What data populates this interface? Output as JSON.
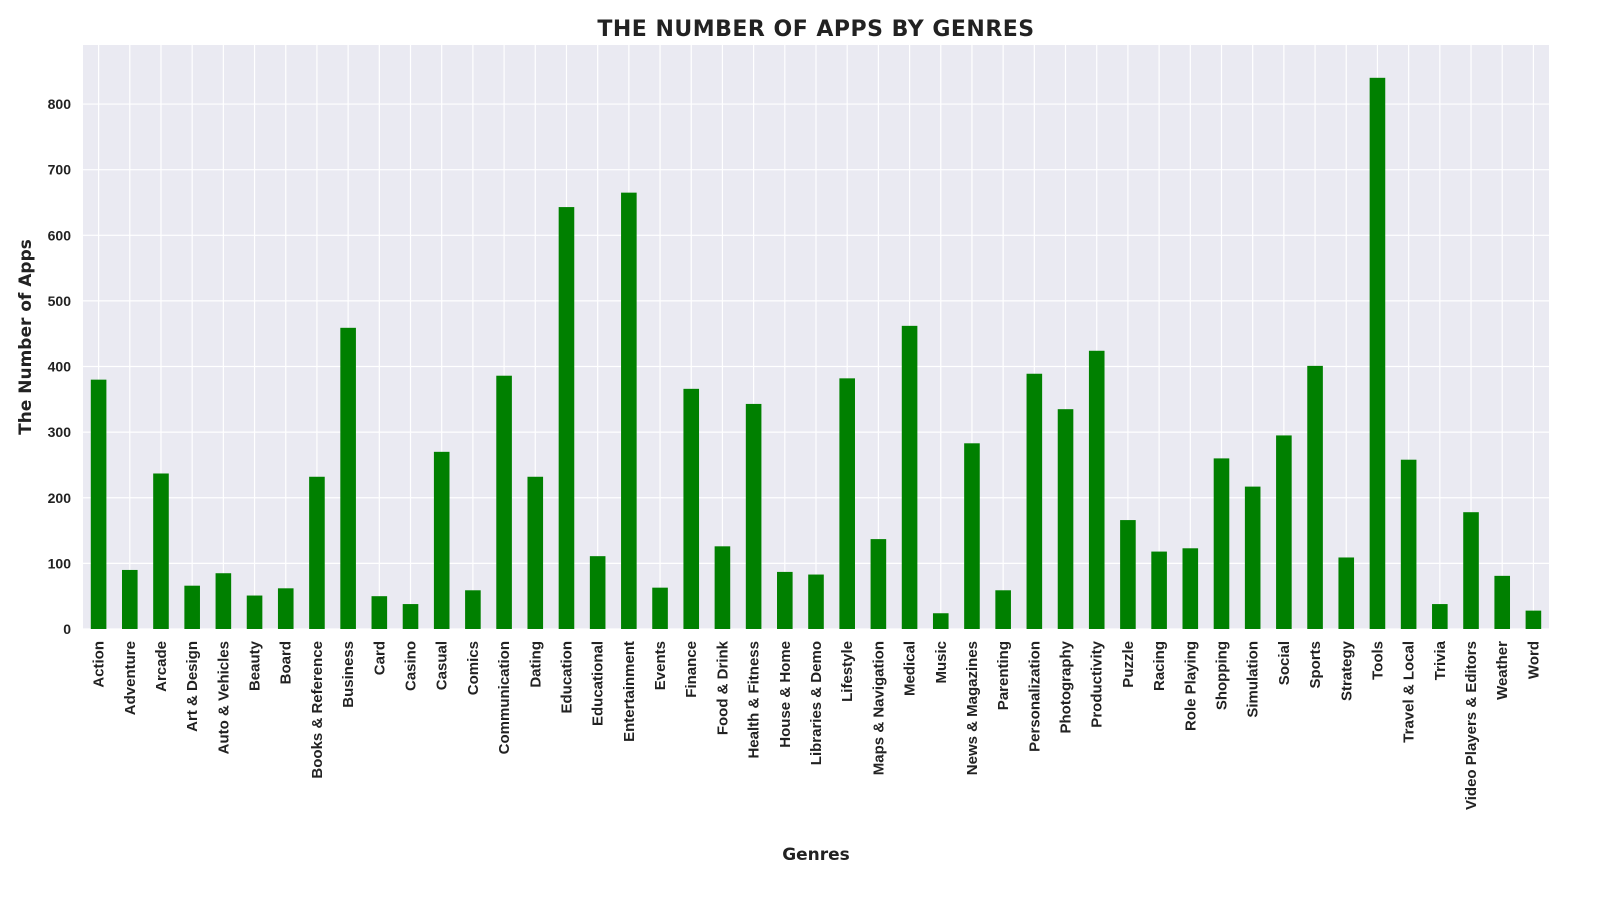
{
  "chart_data": {
    "type": "bar",
    "title": "THE NUMBER OF APPS BY GENRES",
    "xlabel": "Genres",
    "ylabel": "The Number of Apps",
    "ylim": [
      0,
      890
    ],
    "yticks": [
      0,
      100,
      200,
      300,
      400,
      500,
      600,
      700,
      800
    ],
    "grid": true,
    "bar_color": "#008000",
    "plot_background": "#eaeaf2",
    "grid_color": "#ffffff",
    "categories": [
      "Action",
      "Adventure",
      "Arcade",
      "Art & Design",
      "Auto & Vehicles",
      "Beauty",
      "Board",
      "Books & Reference",
      "Business",
      "Card",
      "Casino",
      "Casual",
      "Comics",
      "Communication",
      "Dating",
      "Education",
      "Educational",
      "Entertainment",
      "Events",
      "Finance",
      "Food & Drink",
      "Health & Fitness",
      "House & Home",
      "Libraries & Demo",
      "Lifestyle",
      "Maps & Navigation",
      "Medical",
      "Music",
      "News & Magazines",
      "Parenting",
      "Personalization",
      "Photography",
      "Productivity",
      "Puzzle",
      "Racing",
      "Role Playing",
      "Shopping",
      "Simulation",
      "Social",
      "Sports",
      "Strategy",
      "Tools",
      "Travel & Local",
      "Trivia",
      "Video Players & Editors",
      "Weather",
      "Word"
    ],
    "values": [
      380,
      90,
      237,
      66,
      85,
      51,
      62,
      232,
      459,
      50,
      38,
      270,
      59,
      386,
      232,
      643,
      111,
      665,
      63,
      366,
      126,
      343,
      87,
      83,
      382,
      137,
      462,
      24,
      283,
      59,
      389,
      335,
      424,
      166,
      118,
      123,
      260,
      217,
      295,
      401,
      109,
      840,
      258,
      38,
      178,
      81,
      28
    ]
  }
}
